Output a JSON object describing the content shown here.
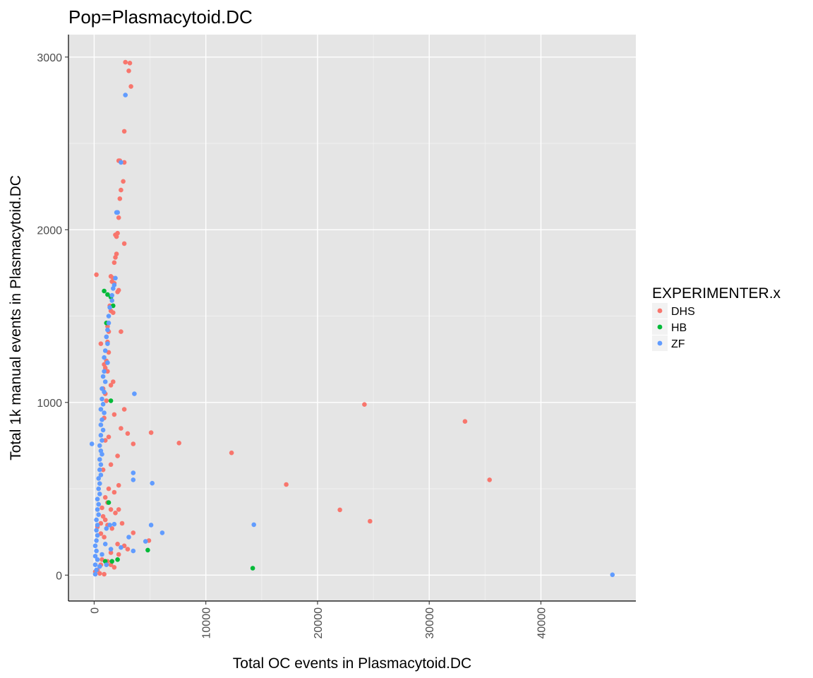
{
  "chart_data": {
    "type": "scatter",
    "title": "Pop=Plasmacytoid.DC",
    "xlabel": "Total OC events in Plasmacytoid.DC",
    "ylabel": "Total 1k manual events in Plasmacytoid.DC",
    "xlim": [
      -2300,
      48500
    ],
    "ylim": [
      -150,
      3130
    ],
    "x_ticks": [
      0,
      10000,
      20000,
      30000,
      40000
    ],
    "x_tick_labels": [
      "0",
      "10000",
      "20000",
      "30000",
      "40000"
    ],
    "y_ticks": [
      0,
      1000,
      2000,
      3000
    ],
    "y_tick_labels": [
      "0",
      "1000",
      "2000",
      "3000"
    ],
    "grid": true,
    "legend": {
      "title": "EXPERIMENTER.x",
      "position": "right",
      "entries": [
        {
          "label": "DHS",
          "color": "#f8766d"
        },
        {
          "label": "HB",
          "color": "#00ba38"
        },
        {
          "label": "ZF",
          "color": "#619cff"
        }
      ]
    },
    "series": [
      {
        "name": "DHS",
        "color": "#f8766d",
        "points": [
          [
            2800,
            2970
          ],
          [
            3200,
            2965
          ],
          [
            3100,
            2920
          ],
          [
            3300,
            2830
          ],
          [
            2700,
            2570
          ],
          [
            2200,
            2400
          ],
          [
            2300,
            2400
          ],
          [
            2700,
            2390
          ],
          [
            2600,
            2280
          ],
          [
            2400,
            2230
          ],
          [
            2300,
            2180
          ],
          [
            2100,
            2100
          ],
          [
            2200,
            2070
          ],
          [
            1900,
            1970
          ],
          [
            2100,
            1980
          ],
          [
            2000,
            1960
          ],
          [
            2700,
            1920
          ],
          [
            2000,
            1860
          ],
          [
            1900,
            1840
          ],
          [
            1800,
            1810
          ],
          [
            1500,
            1730
          ],
          [
            1700,
            1720
          ],
          [
            1600,
            1700
          ],
          [
            1800,
            1690
          ],
          [
            2200,
            1650
          ],
          [
            2100,
            1640
          ],
          [
            1400,
            1560
          ],
          [
            1500,
            1530
          ],
          [
            1700,
            1520
          ],
          [
            2400,
            1410
          ],
          [
            1200,
            1440
          ],
          [
            1300,
            1410
          ],
          [
            1100,
            1380
          ],
          [
            1200,
            1350
          ],
          [
            1300,
            1290
          ],
          [
            1100,
            1240
          ],
          [
            900,
            1220
          ],
          [
            1000,
            1200
          ],
          [
            1200,
            1180
          ],
          [
            1700,
            1120
          ],
          [
            1500,
            1100
          ],
          [
            800,
            1080
          ],
          [
            1000,
            1050
          ],
          [
            1100,
            1010
          ],
          [
            2700,
            960
          ],
          [
            1800,
            930
          ],
          [
            900,
            910
          ],
          [
            2400,
            850
          ],
          [
            3000,
            820
          ],
          [
            5100,
            825
          ],
          [
            1300,
            800
          ],
          [
            1000,
            780
          ],
          [
            3500,
            760
          ],
          [
            7600,
            765
          ],
          [
            12300,
            708
          ],
          [
            2100,
            690
          ],
          [
            1500,
            640
          ],
          [
            800,
            610
          ],
          [
            2200,
            520
          ],
          [
            1300,
            500
          ],
          [
            1800,
            480
          ],
          [
            17200,
            525
          ],
          [
            1000,
            450
          ],
          [
            1200,
            420
          ],
          [
            700,
            390
          ],
          [
            1500,
            380
          ],
          [
            2200,
            380
          ],
          [
            22000,
            378
          ],
          [
            24700,
            312
          ],
          [
            1900,
            360
          ],
          [
            800,
            340
          ],
          [
            1000,
            320
          ],
          [
            2500,
            300
          ],
          [
            600,
            300
          ],
          [
            1200,
            290
          ],
          [
            300,
            280
          ],
          [
            1600,
            270
          ],
          [
            3500,
            245
          ],
          [
            600,
            240
          ],
          [
            900,
            220
          ],
          [
            2100,
            180
          ],
          [
            2700,
            170
          ],
          [
            3000,
            150
          ],
          [
            1500,
            130
          ],
          [
            2200,
            120
          ],
          [
            700,
            90
          ],
          [
            1200,
            80
          ],
          [
            1500,
            60
          ],
          [
            1800,
            45
          ],
          [
            300,
            30
          ],
          [
            900,
            5
          ],
          [
            500,
            10
          ],
          [
            200,
            1740
          ],
          [
            600,
            1340
          ],
          [
            4900,
            200
          ],
          [
            24200,
            988
          ],
          [
            33200,
            890
          ],
          [
            35400,
            552
          ],
          [
            600,
            60
          ],
          [
            100,
            20
          ]
        ]
      },
      {
        "name": "HB",
        "color": "#00ba38",
        "points": [
          [
            900,
            1645
          ],
          [
            1200,
            1625
          ],
          [
            1500,
            1610
          ],
          [
            1700,
            1560
          ],
          [
            1100,
            1460
          ],
          [
            1500,
            1010
          ],
          [
            1300,
            420
          ],
          [
            4800,
            145
          ],
          [
            2100,
            90
          ],
          [
            1600,
            80
          ],
          [
            14200,
            40
          ],
          [
            1000,
            80
          ]
        ]
      },
      {
        "name": "ZF",
        "color": "#619cff",
        "points": [
          [
            2800,
            2780
          ],
          [
            2400,
            2390
          ],
          [
            2000,
            2100
          ],
          [
            2100,
            2100
          ],
          [
            1900,
            1720
          ],
          [
            1800,
            1680
          ],
          [
            1700,
            1660
          ],
          [
            1600,
            1620
          ],
          [
            1600,
            1590
          ],
          [
            1400,
            1550
          ],
          [
            1300,
            1500
          ],
          [
            1300,
            1460
          ],
          [
            1200,
            1420
          ],
          [
            1100,
            1380
          ],
          [
            1200,
            1340
          ],
          [
            1000,
            1300
          ],
          [
            900,
            1260
          ],
          [
            1200,
            1230
          ],
          [
            900,
            1180
          ],
          [
            800,
            1150
          ],
          [
            1000,
            1120
          ],
          [
            700,
            1080
          ],
          [
            900,
            1060
          ],
          [
            3600,
            1050
          ],
          [
            700,
            1020
          ],
          [
            800,
            990
          ],
          [
            600,
            960
          ],
          [
            900,
            940
          ],
          [
            700,
            900
          ],
          [
            600,
            870
          ],
          [
            800,
            840
          ],
          [
            600,
            810
          ],
          [
            700,
            780
          ],
          [
            500,
            750
          ],
          [
            600,
            720
          ],
          [
            700,
            700
          ],
          [
            500,
            670
          ],
          [
            600,
            640
          ],
          [
            500,
            610
          ],
          [
            600,
            580
          ],
          [
            3500,
            592
          ],
          [
            3500,
            552
          ],
          [
            5200,
            532
          ],
          [
            400,
            560
          ],
          [
            500,
            530
          ],
          [
            400,
            500
          ],
          [
            500,
            470
          ],
          [
            300,
            440
          ],
          [
            400,
            410
          ],
          [
            300,
            380
          ],
          [
            400,
            350
          ],
          [
            200,
            320
          ],
          [
            300,
            290
          ],
          [
            5100,
            290
          ],
          [
            14300,
            292
          ],
          [
            6100,
            245
          ],
          [
            1100,
            270
          ],
          [
            1400,
            290
          ],
          [
            1800,
            295
          ],
          [
            200,
            260
          ],
          [
            300,
            230
          ],
          [
            200,
            200
          ],
          [
            100,
            170
          ],
          [
            3100,
            220
          ],
          [
            4600,
            195
          ],
          [
            200,
            140
          ],
          [
            100,
            110
          ],
          [
            300,
            90
          ],
          [
            100,
            60
          ],
          [
            200,
            30
          ],
          [
            100,
            5
          ],
          [
            46400,
            2
          ],
          [
            -200,
            760
          ],
          [
            700,
            120
          ],
          [
            1000,
            180
          ],
          [
            1500,
            150
          ],
          [
            2400,
            160
          ],
          [
            3500,
            140
          ],
          [
            1100,
            60
          ],
          [
            500,
            50
          ]
        ]
      }
    ]
  }
}
